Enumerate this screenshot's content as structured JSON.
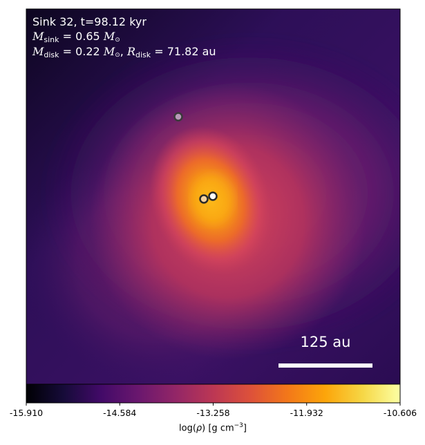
{
  "annotation": {
    "title": "Sink 32, t=98.12 kyr",
    "msink_symbol": "M",
    "msink_sub": "sink",
    "msink_value": "0.65",
    "disk_mass_symbol": "M",
    "disk_mass_sub": "disk",
    "disk_mass_value": "0.22",
    "rdisk_symbol": "R",
    "rdisk_sub": "disk",
    "rdisk_value": "71.82",
    "rdisk_unit": "au"
  },
  "scale_bar": {
    "label": "125 au"
  },
  "colorbar": {
    "colormap": "inferno",
    "min": -15.91,
    "max": -10.606,
    "ticks": [
      -15.91,
      -14.584,
      -13.258,
      -11.932,
      -10.606
    ],
    "tick_labels": [
      "-15.910",
      "-14.584",
      "-13.258",
      "-11.932",
      "-10.606"
    ],
    "label_prefix": "log(",
    "label_rho": "ρ",
    "label_mid": ") [g cm",
    "label_exp": "−3",
    "label_suffix": "]"
  },
  "sinks": [
    {
      "name": "sink-secondary",
      "fill": "#b89ab8",
      "stroke": "#3a3a3a"
    },
    {
      "name": "sink-left",
      "fill": "#f6d2a0",
      "stroke": "#2a2a2a"
    },
    {
      "name": "sink-32",
      "fill": "#ffffff",
      "stroke": "#2a2a2a"
    }
  ],
  "colors": {
    "background": "#2c0f55",
    "core": "#fcb118",
    "mid": "#d8465a",
    "outer": "#8a2a6c"
  }
}
